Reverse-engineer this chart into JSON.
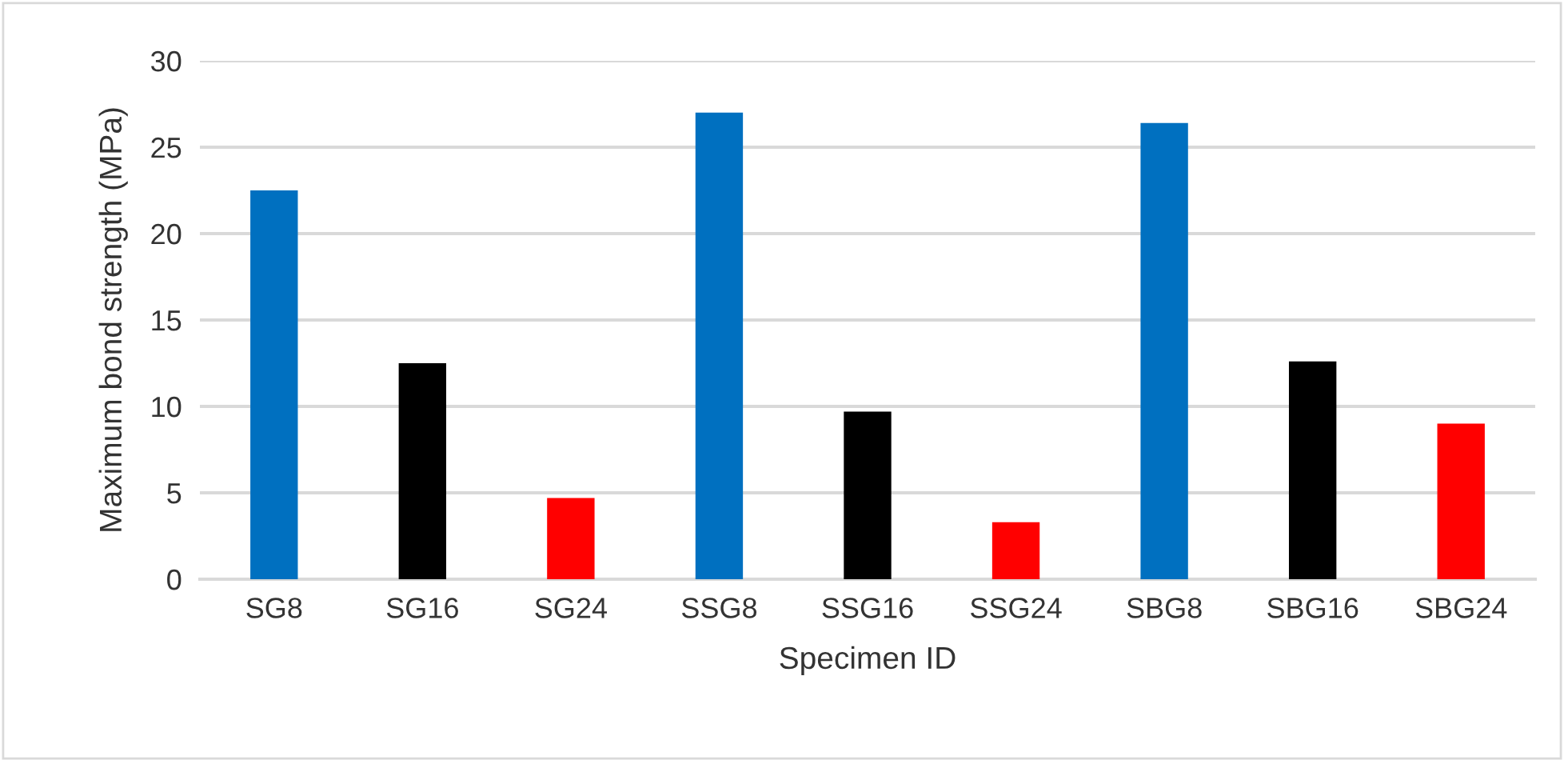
{
  "chart_data": {
    "type": "bar",
    "xlabel": "Specimen ID",
    "ylabel": "Maximum bond strength (MPa)",
    "categories": [
      "SG8",
      "SG16",
      "SG24",
      "SSG8",
      "SSG16",
      "SSG24",
      "SBG8",
      "SBG16",
      "SBG24"
    ],
    "values": [
      22.5,
      12.5,
      4.7,
      27.0,
      9.7,
      3.3,
      26.4,
      12.6,
      9.0
    ],
    "colors": [
      "#0070c0",
      "#000000",
      "#ff0000",
      "#0070c0",
      "#000000",
      "#ff0000",
      "#0070c0",
      "#000000",
      "#ff0000"
    ],
    "ylim": [
      0,
      30
    ],
    "yticks": [
      0,
      5,
      10,
      15,
      20,
      25,
      30
    ],
    "grid": "y",
    "legend": false
  }
}
